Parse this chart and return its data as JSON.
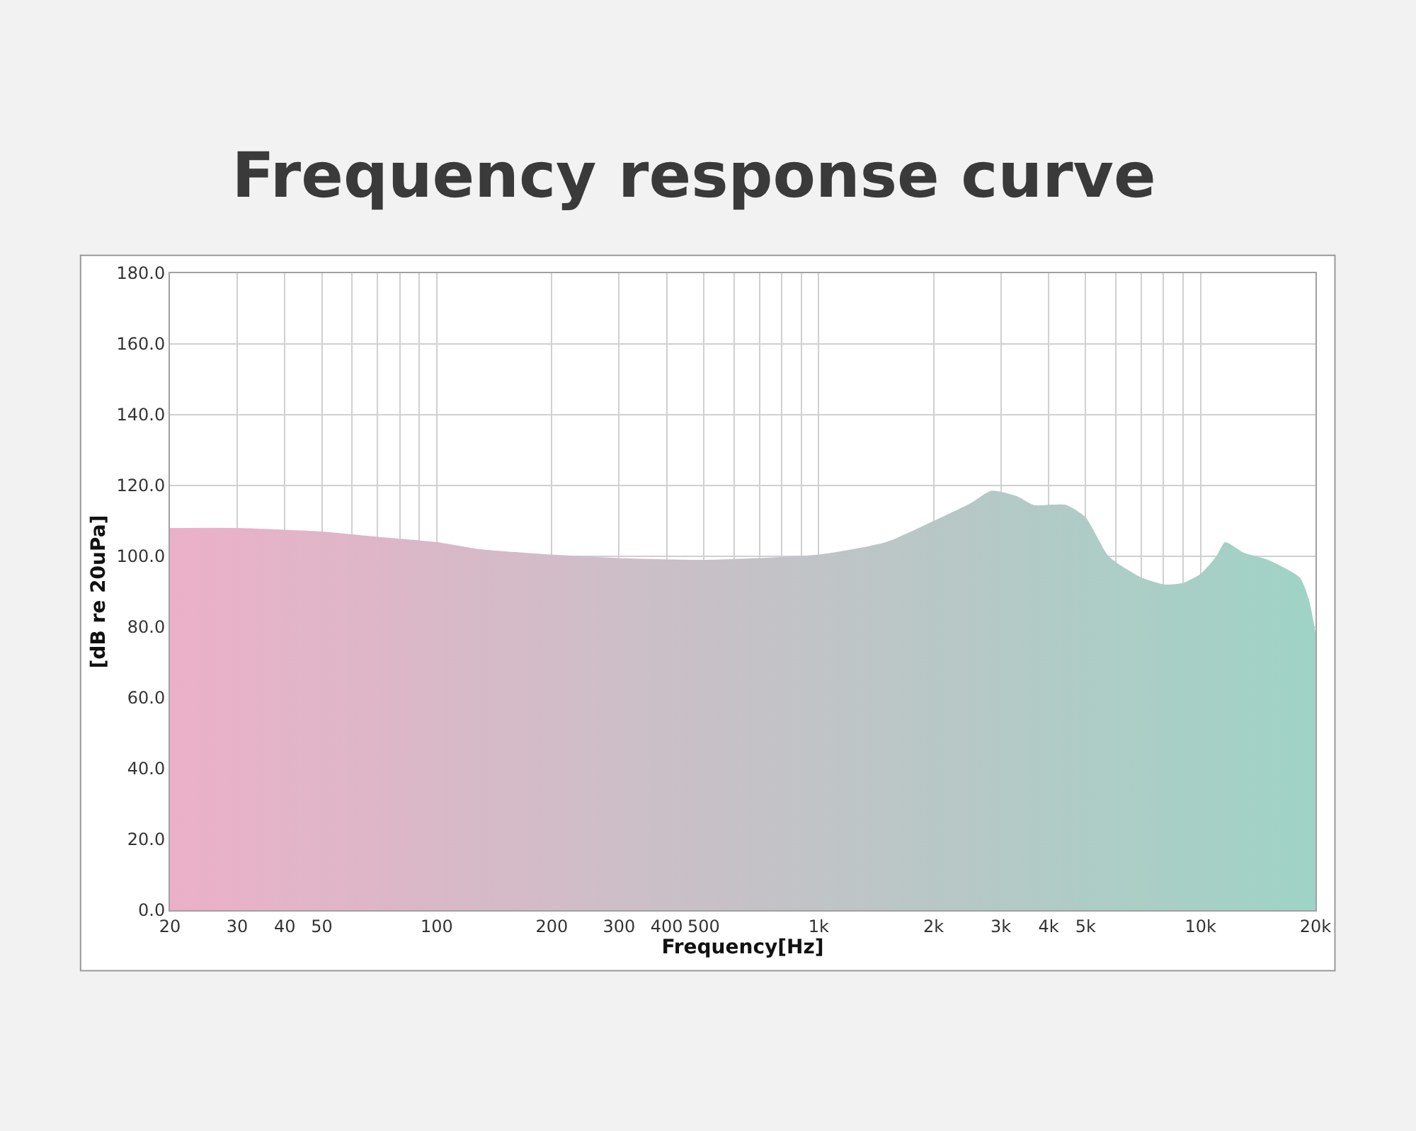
{
  "chart_data": {
    "type": "area",
    "title": "Frequency response curve",
    "xlabel": "Frequency[Hz]",
    "ylabel": "[dB re 20uPa]",
    "log": "x",
    "grid": true,
    "legend": false,
    "xlim": [
      20,
      20000
    ],
    "ylim": [
      0,
      180
    ],
    "xticks": [
      20,
      30,
      40,
      50,
      {
        "value": 60,
        "label": null
      },
      {
        "value": 70,
        "label": null
      },
      {
        "value": 80,
        "label": null
      },
      {
        "value": 90,
        "label": null
      },
      100,
      200,
      300,
      400,
      500,
      {
        "value": 600,
        "label": null
      },
      {
        "value": 700,
        "label": null
      },
      {
        "value": 800,
        "label": null
      },
      {
        "value": 900,
        "label": null
      },
      {
        "value": 1000,
        "label": "1k"
      },
      {
        "value": 2000,
        "label": "2k"
      },
      {
        "value": 3000,
        "label": "3k"
      },
      {
        "value": 4000,
        "label": "4k"
      },
      {
        "value": 5000,
        "label": "5k"
      },
      {
        "value": 6000,
        "label": null
      },
      {
        "value": 7000,
        "label": null
      },
      {
        "value": 8000,
        "label": null
      },
      {
        "value": 9000,
        "label": null
      },
      {
        "value": 10000,
        "label": "10k"
      },
      {
        "value": 20000,
        "label": "20k"
      }
    ],
    "yticks": [
      {
        "value": 0,
        "label": "0.0"
      },
      {
        "value": 20,
        "label": "20.0"
      },
      {
        "value": 40,
        "label": "40.0"
      },
      {
        "value": 60,
        "label": "60.0"
      },
      {
        "value": 80,
        "label": "80.0"
      },
      {
        "value": 100,
        "label": "100.0"
      },
      {
        "value": 120,
        "label": "120.0"
      },
      {
        "value": 140,
        "label": "140.0"
      },
      {
        "value": 160,
        "label": "160.0"
      },
      {
        "value": 180,
        "label": "180.0"
      }
    ],
    "colors": [
      "#ebb0c8",
      "#e7b2c8",
      "#e3b4c8",
      "#e1b5c8",
      "#ddb6c7",
      "#d9b8c7",
      "#d6b9c7",
      "#d2bcc7",
      "#cdbec7",
      "#c8c0c7",
      "#c0c4c6",
      "#bcc6c6",
      "#b8c7c6",
      "#b6c8c6",
      "#b4c9c6",
      "#b3cac6",
      "#b2cac6",
      "#b0cbc6",
      "#aeccc6",
      "#adcdc6",
      "#abcec5",
      "#a9cec5",
      "#a8cfc5",
      "#a7cfc5",
      "#a6d0c5",
      "#a5d0c5",
      "#a4d1c5",
      "#a2d2c5",
      "#a0d3c5",
      "#9fd3c5",
      "#9fd3c5"
    ],
    "x": [
      20,
      30,
      40,
      50,
      70,
      100,
      130,
      200,
      300,
      500,
      1000,
      1500,
      2000,
      2500,
      2830,
      3300,
      3660,
      4450,
      5000,
      5750,
      7000,
      8100,
      9000,
      10000,
      11000,
      11600,
      13000,
      15000,
      18200,
      19200,
      20000
    ],
    "values": [
      108,
      108,
      107.5,
      107,
      105.5,
      104,
      102,
      100.5,
      99.5,
      99,
      100.5,
      104,
      110,
      115,
      118.5,
      117,
      114.5,
      114.5,
      111,
      100,
      94,
      92,
      92.5,
      95,
      100,
      104,
      101,
      99,
      94,
      88,
      78.5
    ]
  }
}
